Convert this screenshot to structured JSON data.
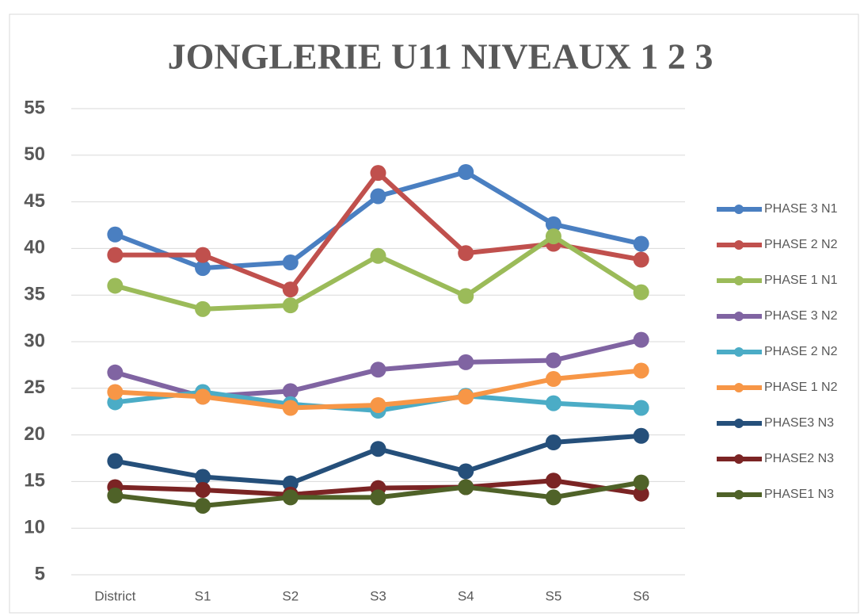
{
  "chart_data": {
    "type": "line",
    "title": "JONGLERIE U11 NIVEAUX 1 2 3",
    "categories": [
      "District",
      "S1",
      "S2",
      "S3",
      "S4",
      "S5",
      "S6"
    ],
    "series": [
      {
        "name": "PHASE 3 N1",
        "color": "#4a7fc1",
        "values": [
          41.5,
          37.9,
          38.5,
          45.6,
          48.2,
          42.6,
          40.5
        ]
      },
      {
        "name": "PHASE 2 N2",
        "color": "#c0504d",
        "values": [
          39.3,
          39.3,
          35.6,
          48.1,
          39.5,
          40.5,
          38.8
        ]
      },
      {
        "name": "PHASE 1 N1",
        "color": "#9bbb59",
        "values": [
          36.0,
          33.5,
          33.9,
          39.2,
          34.9,
          41.3,
          35.3
        ]
      },
      {
        "name": "PHASE 3 N2",
        "color": "#8064a2",
        "values": [
          26.7,
          24.1,
          24.7,
          27.0,
          27.8,
          28.0,
          30.2
        ]
      },
      {
        "name": "PHASE 2 N2",
        "color": "#4bacc6",
        "values": [
          23.5,
          24.6,
          23.3,
          22.6,
          24.2,
          23.4,
          22.9
        ]
      },
      {
        "name": "PHASE 1 N2",
        "color": "#f79646",
        "values": [
          24.6,
          24.1,
          22.9,
          23.2,
          24.1,
          26.0,
          26.9
        ]
      },
      {
        "name": "PHASE3 N3",
        "color": "#254f7a",
        "values": [
          17.2,
          15.5,
          14.8,
          18.5,
          16.1,
          19.2,
          19.9
        ]
      },
      {
        "name": "PHASE2 N3",
        "color": "#7b2424",
        "values": [
          14.4,
          14.1,
          13.6,
          14.3,
          14.4,
          15.1,
          13.7
        ]
      },
      {
        "name": "PHASE1 N3",
        "color": "#4f6228",
        "values": [
          13.5,
          12.4,
          13.3,
          13.3,
          14.4,
          13.3,
          14.9
        ]
      }
    ],
    "ylim": [
      5,
      55
    ],
    "yticks": [
      5,
      10,
      15,
      20,
      25,
      30,
      35,
      40,
      45,
      50,
      55
    ],
    "grid": true,
    "legend": "right"
  }
}
